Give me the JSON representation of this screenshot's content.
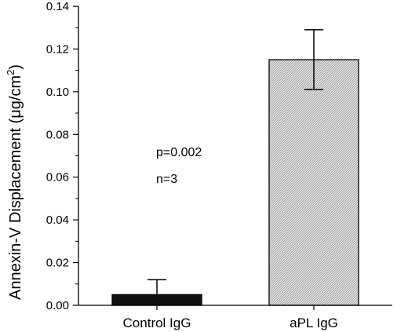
{
  "chart_data": {
    "type": "bar",
    "ylabel_main": "Annexin-V Displacement (",
    "ylabel_unit_base": "μg/cm",
    "ylabel_unit_sup": "2",
    "ylabel_close": ")",
    "xlabel": "",
    "categories": [
      "Control IgG",
      "aPL IgG"
    ],
    "values": [
      0.005,
      0.115
    ],
    "error_upper": [
      0.012,
      0.129
    ],
    "error_lower": [
      null,
      0.101
    ],
    "ylim": [
      0,
      0.14
    ],
    "yticks": [
      "0.00",
      "0.02",
      "0.04",
      "0.06",
      "0.08",
      "0.10",
      "0.12",
      "0.14"
    ],
    "bar_colors": [
      "#111111",
      "#d4d4d4"
    ],
    "bar_patterns": [
      "solid",
      "hatched"
    ],
    "annotations": [
      "p=0.002",
      "n=3"
    ],
    "grid": false,
    "legend": "none"
  }
}
